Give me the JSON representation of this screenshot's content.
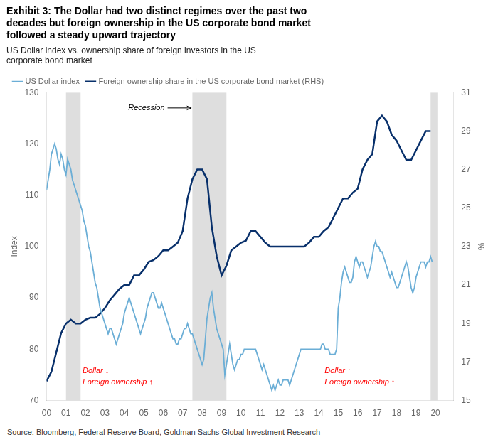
{
  "chart_data": {
    "type": "line",
    "title": "Exhibit 3: The Dollar had two distinct regimes over the past two\ndecades but foreign ownership in the US corporate bond market\nfollowed a steady upward trajectory",
    "subtitle": "US Dollar index vs. ownership share of foreign investors in the US\ncorporate bond market",
    "source": "Source: Bloomberg, Federal Reserve Board, Goldman Sachs Global Investment Research",
    "ylabel": "Index",
    "y2label": "%",
    "grid": false,
    "legend": "top",
    "xlim": [
      2000.0,
      2020.92
    ],
    "xticks": [
      {
        "value": 2000,
        "label": "00"
      },
      {
        "value": 2001,
        "label": "01"
      },
      {
        "value": 2002,
        "label": "02"
      },
      {
        "value": 2003,
        "label": "03"
      },
      {
        "value": 2004,
        "label": "04"
      },
      {
        "value": 2005,
        "label": "05"
      },
      {
        "value": 2006,
        "label": "06"
      },
      {
        "value": 2007,
        "label": "07"
      },
      {
        "value": 2008,
        "label": "08"
      },
      {
        "value": 2009,
        "label": "09"
      },
      {
        "value": 2010,
        "label": "10"
      },
      {
        "value": 2011,
        "label": "11"
      },
      {
        "value": 2012,
        "label": "12"
      },
      {
        "value": 2013,
        "label": "13"
      },
      {
        "value": 2014,
        "label": "14"
      },
      {
        "value": 2015,
        "label": "15"
      },
      {
        "value": 2016,
        "label": "16"
      },
      {
        "value": 2017,
        "label": "17"
      },
      {
        "value": 2018,
        "label": "18"
      },
      {
        "value": 2019,
        "label": "19"
      },
      {
        "value": 2020,
        "label": "20"
      }
    ],
    "ylim": [
      70,
      130
    ],
    "yticks": [
      70,
      80,
      90,
      100,
      110,
      120,
      130
    ],
    "y2lim": [
      15,
      31
    ],
    "y2ticks": [
      15,
      17,
      19,
      21,
      23,
      25,
      27,
      29,
      31
    ],
    "recession_bands": [
      [
        2001.0,
        2001.75
      ],
      [
        2007.5,
        2009.25
      ],
      [
        2019.75,
        2020.1
      ]
    ],
    "annotations": [
      {
        "text": "Recession",
        "x": 2004.2,
        "y": 127,
        "arrow_to": [
          2007.45,
          127
        ]
      },
      {
        "text": "Dollar ↓\nForeign ownership ↑",
        "x": 2001.85,
        "y": 76.5,
        "color": "red"
      },
      {
        "text": "Dollar ↑\nForeign ownership ↑",
        "x": 2014.3,
        "y": 76.5,
        "color": "red"
      }
    ],
    "series": [
      {
        "name": "US Dollar index",
        "color": "#6baed6",
        "x": [
          2000.0,
          2000.083,
          2000.167,
          2000.25,
          2000.333,
          2000.417,
          2000.5,
          2000.583,
          2000.667,
          2000.75,
          2000.833,
          2000.917,
          2001.0,
          2001.083,
          2001.167,
          2001.25,
          2001.333,
          2001.417,
          2001.5,
          2001.583,
          2001.667,
          2001.75,
          2001.833,
          2001.917,
          2002.0,
          2002.083,
          2002.167,
          2002.25,
          2002.333,
          2002.417,
          2002.5,
          2002.583,
          2002.667,
          2002.75,
          2002.833,
          2002.917,
          2003.0,
          2003.083,
          2003.167,
          2003.25,
          2003.333,
          2003.417,
          2003.5,
          2003.583,
          2003.667,
          2003.75,
          2003.833,
          2003.917,
          2004.0,
          2004.083,
          2004.167,
          2004.25,
          2004.333,
          2004.417,
          2004.5,
          2004.583,
          2004.667,
          2004.75,
          2004.833,
          2004.917,
          2005.0,
          2005.083,
          2005.167,
          2005.25,
          2005.333,
          2005.417,
          2005.5,
          2005.583,
          2005.667,
          2005.75,
          2005.833,
          2005.917,
          2006.0,
          2006.083,
          2006.167,
          2006.25,
          2006.333,
          2006.417,
          2006.5,
          2006.583,
          2006.667,
          2006.75,
          2006.833,
          2006.917,
          2007.0,
          2007.083,
          2007.167,
          2007.25,
          2007.333,
          2007.417,
          2007.5,
          2007.583,
          2007.667,
          2007.75,
          2007.833,
          2007.917,
          2008.0,
          2008.083,
          2008.167,
          2008.25,
          2008.333,
          2008.417,
          2008.5,
          2008.583,
          2008.667,
          2008.75,
          2008.833,
          2008.917,
          2009.0,
          2009.083,
          2009.167,
          2009.25,
          2009.333,
          2009.417,
          2009.5,
          2009.583,
          2009.667,
          2009.75,
          2009.833,
          2009.917,
          2010.0,
          2010.083,
          2010.167,
          2010.25,
          2010.333,
          2010.417,
          2010.5,
          2010.583,
          2010.667,
          2010.75,
          2010.833,
          2010.917,
          2011.0,
          2011.083,
          2011.167,
          2011.25,
          2011.333,
          2011.417,
          2011.5,
          2011.583,
          2011.667,
          2011.75,
          2011.833,
          2011.917,
          2012.0,
          2012.083,
          2012.167,
          2012.25,
          2012.333,
          2012.417,
          2012.5,
          2012.583,
          2012.667,
          2012.75,
          2012.833,
          2012.917,
          2013.0,
          2013.083,
          2013.167,
          2013.25,
          2013.333,
          2013.417,
          2013.5,
          2013.583,
          2013.667,
          2013.75,
          2013.833,
          2013.917,
          2014.0,
          2014.083,
          2014.167,
          2014.25,
          2014.333,
          2014.417,
          2014.5,
          2014.583,
          2014.667,
          2014.75,
          2014.833,
          2014.917,
          2015.0,
          2015.083,
          2015.167,
          2015.25,
          2015.333,
          2015.417,
          2015.5,
          2015.583,
          2015.667,
          2015.75,
          2015.833,
          2015.917,
          2016.0,
          2016.083,
          2016.167,
          2016.25,
          2016.333,
          2016.417,
          2016.5,
          2016.583,
          2016.667,
          2016.75,
          2016.833,
          2016.917,
          2017.0,
          2017.083,
          2017.167,
          2017.25,
          2017.333,
          2017.417,
          2017.5,
          2017.583,
          2017.667,
          2017.75,
          2017.833,
          2017.917,
          2018.0,
          2018.083,
          2018.167,
          2018.25,
          2018.333,
          2018.417,
          2018.5,
          2018.583,
          2018.667,
          2018.75,
          2018.833,
          2018.917,
          2019.0,
          2019.083,
          2019.167,
          2019.25,
          2019.333,
          2019.417,
          2019.5,
          2019.583,
          2019.667,
          2019.75,
          2019.833
        ],
        "values": [
          111,
          113,
          115,
          118,
          119,
          120,
          119,
          117,
          116,
          118,
          117,
          115,
          114,
          117,
          116,
          115,
          113,
          112,
          111,
          110,
          109,
          108,
          107,
          105,
          104,
          102,
          100,
          99,
          97,
          95,
          93,
          92,
          90,
          88,
          87,
          86,
          85,
          84,
          83,
          84,
          84,
          83,
          82,
          81,
          82,
          83,
          84,
          85,
          87,
          88,
          89,
          90,
          89,
          88,
          87,
          86,
          85,
          84,
          83,
          84,
          85,
          86,
          88,
          89,
          90,
          91,
          91,
          90,
          89,
          88,
          88,
          89,
          88,
          87,
          86,
          85,
          84,
          83,
          82,
          82,
          81,
          81,
          82,
          82,
          83,
          84,
          84,
          85,
          84,
          83,
          83,
          82,
          81,
          80,
          79,
          78,
          77,
          78,
          82,
          86,
          88,
          90,
          91,
          88,
          86,
          84,
          83,
          82,
          81,
          80,
          75,
          77,
          79,
          81,
          79,
          77,
          76,
          77,
          78,
          78,
          79,
          79,
          80,
          80,
          80,
          80,
          80,
          80,
          80,
          80,
          79,
          78,
          77,
          76,
          77,
          76,
          75,
          74,
          73,
          72,
          73,
          72,
          73,
          74,
          73,
          73,
          74,
          74,
          74,
          74,
          73,
          74,
          75,
          76,
          77,
          78,
          79,
          80,
          80,
          80,
          80,
          80,
          80,
          80,
          80,
          80,
          80,
          80,
          80,
          80,
          81,
          81,
          80,
          80,
          80,
          79,
          79,
          79,
          79,
          80,
          88,
          90,
          93,
          95,
          96,
          95,
          94,
          93,
          93,
          94,
          97,
          98,
          97,
          96,
          97,
          97,
          96,
          95,
          94,
          95,
          96,
          98,
          100,
          101,
          100,
          100,
          99,
          99,
          98,
          97,
          96,
          95,
          94,
          95,
          94,
          93,
          92,
          92,
          93,
          94,
          95,
          96,
          97,
          96,
          94,
          92,
          91,
          92,
          94,
          95,
          96,
          97,
          97,
          97,
          96,
          97,
          97,
          98,
          97
        ]
      },
      {
        "name": "Foreign ownership share in the US corporate bond market (RHS)",
        "color": "#08306b",
        "axis": "y2",
        "x": [
          2000.0,
          2000.25,
          2000.5,
          2000.75,
          2001.0,
          2001.25,
          2001.5,
          2001.75,
          2002.0,
          2002.25,
          2002.5,
          2002.75,
          2003.0,
          2003.25,
          2003.5,
          2003.75,
          2004.0,
          2004.25,
          2004.5,
          2004.75,
          2005.0,
          2005.25,
          2005.5,
          2005.75,
          2006.0,
          2006.25,
          2006.5,
          2006.75,
          2007.0,
          2007.25,
          2007.5,
          2007.75,
          2008.0,
          2008.25,
          2008.5,
          2008.75,
          2009.0,
          2009.25,
          2009.5,
          2009.75,
          2010.0,
          2010.25,
          2010.5,
          2010.75,
          2011.0,
          2011.25,
          2011.5,
          2011.75,
          2012.0,
          2012.25,
          2012.5,
          2012.75,
          2013.0,
          2013.25,
          2013.5,
          2013.75,
          2014.0,
          2014.25,
          2014.5,
          2014.75,
          2015.0,
          2015.25,
          2015.5,
          2015.75,
          2016.0,
          2016.25,
          2016.5,
          2016.75,
          2017.0,
          2017.25,
          2017.5,
          2017.75,
          2018.0,
          2018.25,
          2018.5,
          2018.75,
          2019.0,
          2019.25,
          2019.5,
          2019.75
        ],
        "values": [
          16.0,
          16.5,
          17.5,
          18.5,
          19.0,
          19.2,
          19.0,
          19.0,
          19.2,
          19.3,
          19.3,
          19.5,
          19.8,
          20.2,
          20.5,
          20.8,
          21.0,
          21.0,
          21.5,
          21.5,
          21.8,
          22.2,
          22.3,
          22.5,
          22.8,
          22.8,
          23.0,
          23.2,
          23.8,
          25.5,
          26.5,
          27.0,
          27.0,
          26.5,
          24.0,
          22.5,
          21.5,
          22.0,
          22.8,
          23.0,
          23.2,
          23.3,
          23.8,
          23.8,
          23.5,
          23.2,
          23.0,
          23.0,
          23.0,
          23.0,
          23.0,
          23.0,
          23.0,
          23.0,
          23.2,
          23.5,
          23.5,
          23.8,
          24.0,
          24.5,
          25.0,
          25.5,
          25.5,
          25.8,
          26.0,
          27.0,
          27.5,
          27.8,
          29.5,
          29.8,
          29.5,
          28.8,
          28.5,
          28.0,
          27.5,
          27.5,
          28.0,
          28.5,
          29.0,
          29.0
        ]
      }
    ]
  }
}
